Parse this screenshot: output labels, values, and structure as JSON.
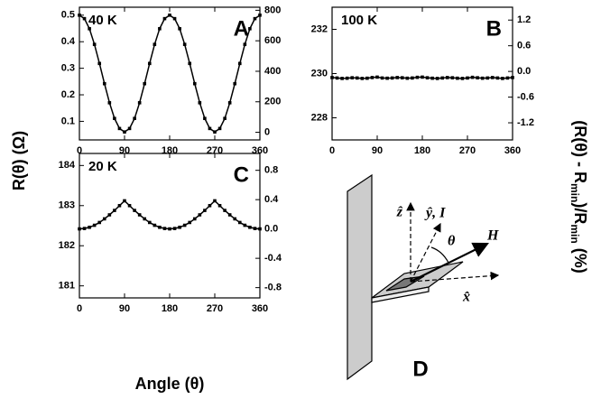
{
  "figure": {
    "x_label": "Angle (θ)",
    "y_label": "R(θ) (Ω)",
    "y2_label": [
      "(R(θ) - R",
      "min",
      ")/R",
      "min",
      " (%)"
    ]
  },
  "diagram": {
    "z": "ẑ",
    "y": "ŷ, I⃗",
    "theta": "θ",
    "h": "H⃗",
    "x": "x̂",
    "panel_label": "D"
  },
  "chart_data": [
    {
      "type": "line",
      "annotation": "40 K",
      "panel_label": "A",
      "x": [
        0,
        10,
        20,
        30,
        40,
        50,
        60,
        70,
        80,
        90,
        100,
        110,
        120,
        130,
        140,
        150,
        160,
        170,
        180,
        190,
        200,
        210,
        220,
        230,
        240,
        250,
        260,
        270,
        280,
        290,
        300,
        310,
        320,
        330,
        340,
        350,
        360
      ],
      "values": [
        0.5,
        0.487,
        0.449,
        0.39,
        0.318,
        0.242,
        0.17,
        0.111,
        0.073,
        0.06,
        0.073,
        0.111,
        0.17,
        0.242,
        0.318,
        0.39,
        0.449,
        0.487,
        0.5,
        0.487,
        0.449,
        0.39,
        0.318,
        0.242,
        0.17,
        0.111,
        0.073,
        0.06,
        0.073,
        0.111,
        0.17,
        0.242,
        0.318,
        0.39,
        0.449,
        0.487,
        0.5
      ],
      "color": "#000000",
      "xlim": [
        0,
        360
      ],
      "xticks": [
        0,
        90,
        180,
        270,
        360
      ],
      "ylim": [
        0.03,
        0.53
      ],
      "yticks": [
        0.1,
        0.2,
        0.3,
        0.4,
        0.5
      ],
      "y2lim": [
        -50,
        820
      ],
      "y2ticks": [
        0,
        200,
        400,
        600,
        800
      ]
    },
    {
      "type": "line",
      "annotation": "100 K",
      "panel_label": "B",
      "x": [
        0,
        10,
        20,
        30,
        40,
        50,
        60,
        70,
        80,
        90,
        100,
        110,
        120,
        130,
        140,
        150,
        160,
        170,
        180,
        190,
        200,
        210,
        220,
        230,
        240,
        250,
        260,
        270,
        280,
        290,
        300,
        310,
        320,
        330,
        340,
        350,
        360
      ],
      "values": [
        229.82,
        229.8,
        229.78,
        229.79,
        229.81,
        229.8,
        229.78,
        229.79,
        229.82,
        229.84,
        229.8,
        229.79,
        229.8,
        229.82,
        229.81,
        229.79,
        229.8,
        229.83,
        229.84,
        229.81,
        229.79,
        229.78,
        229.8,
        229.82,
        229.81,
        229.79,
        229.78,
        229.8,
        229.83,
        229.81,
        229.79,
        229.8,
        229.82,
        229.8,
        229.78,
        229.8,
        229.82
      ],
      "color": "#000000",
      "xlim": [
        0,
        360
      ],
      "xticks": [
        0,
        90,
        180,
        270,
        360
      ],
      "ylim": [
        227.0,
        233.0
      ],
      "yticks": [
        228,
        230,
        232
      ],
      "y2lim": [
        -1.6,
        1.5
      ],
      "y2ticks": [
        -1.2,
        -0.6,
        {
          "value": 0,
          "label": "0.0"
        },
        0.6,
        1.2
      ]
    },
    {
      "type": "line",
      "annotation": "20 K",
      "panel_label": "C",
      "x": [
        0,
        10,
        20,
        30,
        40,
        50,
        60,
        70,
        80,
        90,
        100,
        110,
        120,
        130,
        140,
        150,
        160,
        170,
        180,
        190,
        200,
        210,
        220,
        230,
        240,
        250,
        260,
        270,
        280,
        290,
        300,
        310,
        320,
        330,
        340,
        350,
        360
      ],
      "values": [
        182.42,
        182.43,
        182.46,
        182.51,
        182.58,
        182.67,
        182.77,
        182.88,
        183.0,
        183.12,
        183.0,
        182.88,
        182.77,
        182.67,
        182.58,
        182.51,
        182.46,
        182.43,
        182.42,
        182.43,
        182.46,
        182.51,
        182.58,
        182.67,
        182.77,
        182.88,
        183.0,
        183.12,
        183.0,
        182.88,
        182.77,
        182.67,
        182.58,
        182.51,
        182.46,
        182.43,
        182.42
      ],
      "color": "#000000",
      "xlim": [
        0,
        360
      ],
      "xticks": [
        0,
        90,
        180,
        270,
        360
      ],
      "ylim": [
        180.7,
        184.3
      ],
      "yticks": [
        181,
        182,
        183,
        184
      ],
      "y2lim": [
        -0.94,
        1.03
      ],
      "y2ticks": [
        -0.8,
        -0.4,
        {
          "value": 0,
          "label": "0.0"
        },
        0.4,
        0.8
      ]
    }
  ]
}
